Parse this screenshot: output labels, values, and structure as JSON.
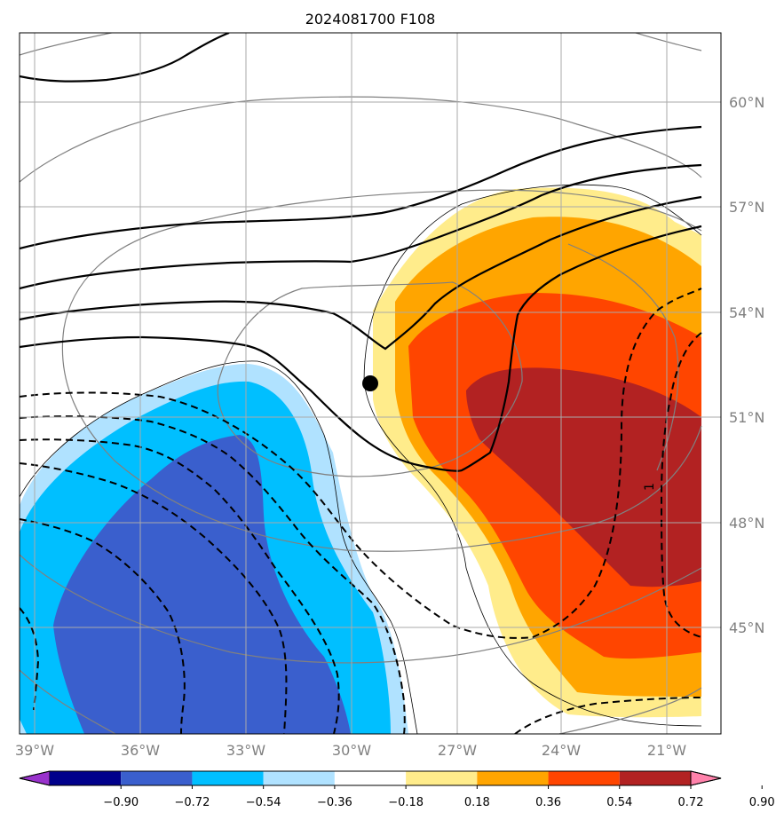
{
  "title": "2024081700 F108",
  "map": {
    "lon_labels": [
      "39°W",
      "36°W",
      "33°W",
      "30°W",
      "27°W",
      "24°W",
      "21°W"
    ],
    "lat_labels": [
      "60°N",
      "57°N",
      "54°N",
      "51°N",
      "48°N",
      "45°N"
    ],
    "contour_label": "1",
    "gridline_color": "#aaaaaa",
    "marker": "filled-black-circle"
  },
  "colorbar": {
    "colors": [
      "#9932CC",
      "#00008B",
      "#3A5FCD",
      "#00BFFF",
      "#B0E2FF",
      "#FFFFFF",
      "#FFEC8B",
      "#FFA500",
      "#FF4500",
      "#B22222",
      "#FF82AB"
    ],
    "labels": [
      "−0.90",
      "−0.72",
      "−0.54",
      "−0.36",
      "−0.18",
      "0.18",
      "0.36",
      "0.54",
      "0.72",
      "0.90"
    ]
  }
}
